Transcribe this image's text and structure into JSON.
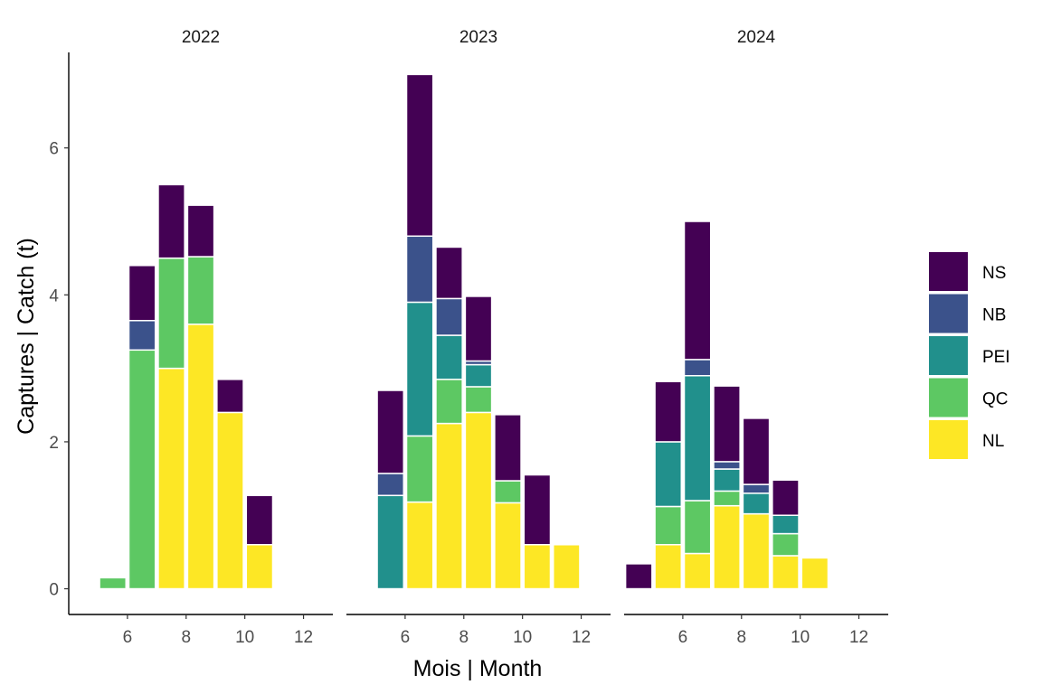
{
  "chart_data": {
    "type": "bar",
    "stacked": true,
    "faceted_by": "year",
    "xlabel": "Mois | Month",
    "ylabel": "Captures | Catch (t)",
    "xlim": [
      4,
      13
    ],
    "ylim": [
      -0.35,
      7.3
    ],
    "x_ticks": [
      6,
      8,
      10,
      12
    ],
    "y_ticks": [
      0,
      2,
      4,
      6
    ],
    "grid": false,
    "legend_placement": "right",
    "series_order": [
      "NS",
      "NB",
      "PEI",
      "QC",
      "NL"
    ],
    "colors": {
      "NS": "#440154",
      "NB": "#3b528b",
      "PEI": "#21908c",
      "QC": "#5dc863",
      "NL": "#fde725"
    },
    "panels": [
      {
        "label": "2022",
        "bars": [
          {
            "month": 5,
            "NL": 0,
            "QC": 0.15,
            "PEI": 0,
            "NB": 0,
            "NS": 0
          },
          {
            "month": 6,
            "NL": 0,
            "QC": 3.25,
            "PEI": 0,
            "NB": 0.4,
            "NS": 0.75
          },
          {
            "month": 7,
            "NL": 3.0,
            "QC": 1.5,
            "PEI": 0,
            "NB": 0,
            "NS": 1.0
          },
          {
            "month": 8,
            "NL": 3.6,
            "QC": 0.92,
            "PEI": 0,
            "NB": 0,
            "NS": 0.7
          },
          {
            "month": 9,
            "NL": 2.4,
            "QC": 0,
            "PEI": 0,
            "NB": 0,
            "NS": 0.45
          },
          {
            "month": 10,
            "NL": 0.6,
            "QC": 0,
            "PEI": 0,
            "NB": 0,
            "NS": 0.67
          }
        ]
      },
      {
        "label": "2023",
        "bars": [
          {
            "month": 5,
            "NL": 0,
            "QC": 0,
            "PEI": 1.27,
            "NB": 0.3,
            "NS": 1.13
          },
          {
            "month": 6,
            "NL": 1.18,
            "QC": 0.9,
            "PEI": 1.82,
            "NB": 0.9,
            "NS": 2.2
          },
          {
            "month": 7,
            "NL": 2.25,
            "QC": 0.6,
            "PEI": 0.6,
            "NB": 0.5,
            "NS": 0.7
          },
          {
            "month": 8,
            "NL": 2.4,
            "QC": 0.35,
            "PEI": 0.3,
            "NB": 0.05,
            "NS": 0.88
          },
          {
            "month": 9,
            "NL": 1.17,
            "QC": 0.3,
            "PEI": 0,
            "NB": 0,
            "NS": 0.9
          },
          {
            "month": 10,
            "NL": 0.6,
            "QC": 0,
            "PEI": 0,
            "NB": 0,
            "NS": 0.95
          },
          {
            "month": 11,
            "NL": 0.6,
            "QC": 0,
            "PEI": 0,
            "NB": 0,
            "NS": 0
          }
        ]
      },
      {
        "label": "2024",
        "bars": [
          {
            "month": 4,
            "NL": 0,
            "QC": 0,
            "PEI": 0,
            "NB": 0,
            "NS": 0.34
          },
          {
            "month": 5,
            "NL": 0.6,
            "QC": 0.52,
            "PEI": 0.88,
            "NB": 0,
            "NS": 0.82
          },
          {
            "month": 6,
            "NL": 0.48,
            "QC": 0.72,
            "PEI": 1.7,
            "NB": 0.22,
            "NS": 1.88
          },
          {
            "month": 7,
            "NL": 1.13,
            "QC": 0.2,
            "PEI": 0.3,
            "NB": 0.1,
            "NS": 1.03
          },
          {
            "month": 8,
            "NL": 1.02,
            "QC": 0,
            "PEI": 0.28,
            "NB": 0.12,
            "NS": 0.9
          },
          {
            "month": 9,
            "NL": 0.45,
            "QC": 0.3,
            "PEI": 0.25,
            "NB": 0,
            "NS": 0.48
          },
          {
            "month": 10,
            "NL": 0.42,
            "QC": 0,
            "PEI": 0,
            "NB": 0,
            "NS": 0
          }
        ]
      }
    ]
  }
}
